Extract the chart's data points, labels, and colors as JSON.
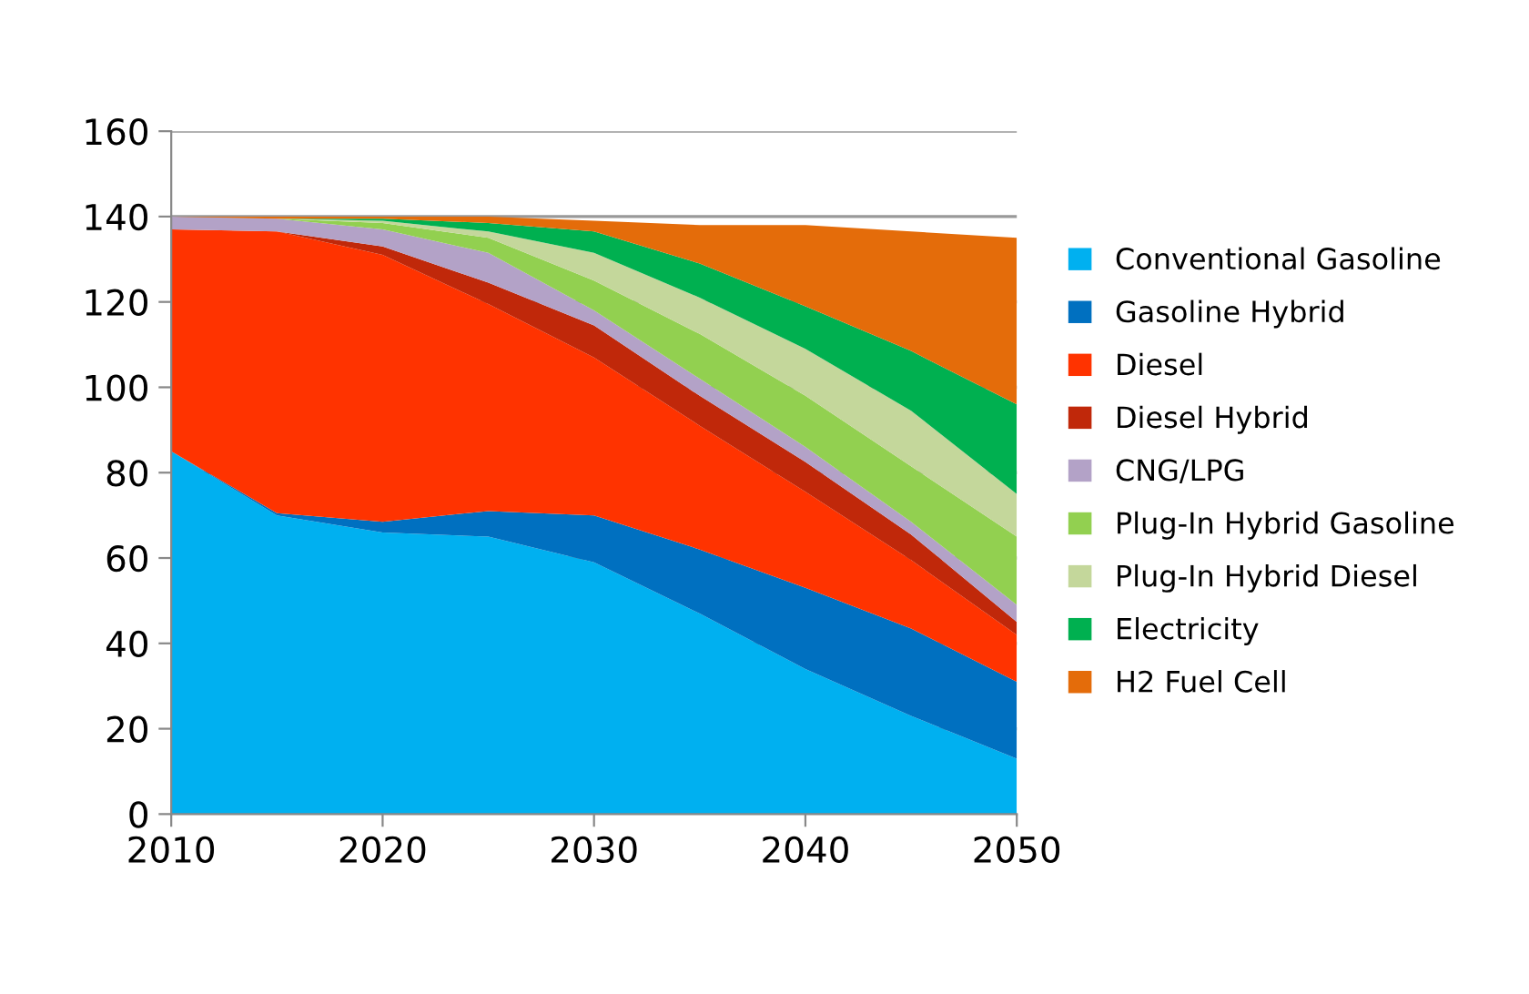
{
  "chart_data": {
    "type": "area",
    "stacked": true,
    "x": [
      2010,
      2015,
      2020,
      2025,
      2030,
      2035,
      2040,
      2045,
      2050
    ],
    "series": [
      {
        "name": "Conventional Gasoline",
        "color": "#00b0f0",
        "values": [
          85,
          70,
          66,
          65,
          59,
          47,
          34,
          23,
          13
        ]
      },
      {
        "name": "Gasoline Hybrid",
        "color": "#0070c0",
        "values": [
          0,
          0.5,
          2.5,
          6,
          11,
          15,
          19,
          20.5,
          18
        ]
      },
      {
        "name": "Diesel",
        "color": "#ff3300",
        "values": [
          52,
          66,
          62.5,
          48.5,
          37,
          29,
          22.5,
          16,
          11
        ]
      },
      {
        "name": "Diesel Hybrid",
        "color": "#c0280a",
        "values": [
          0,
          0,
          2,
          5,
          7.5,
          7,
          7,
          6,
          3
        ]
      },
      {
        "name": "CNG/LPG",
        "color": "#b3a2c7",
        "values": [
          3,
          3,
          4,
          7,
          3.5,
          4,
          3.5,
          3,
          4
        ]
      },
      {
        "name": "Plug-In Hybrid Gasoline",
        "color": "#92d050",
        "values": [
          0,
          0,
          1.5,
          3.5,
          7,
          10.5,
          12,
          13,
          16
        ]
      },
      {
        "name": "Plug-In Hybrid Diesel",
        "color": "#c4d79b",
        "values": [
          0,
          0,
          0.5,
          1.5,
          6.5,
          8.5,
          11,
          13,
          10
        ]
      },
      {
        "name": "Electricity",
        "color": "#00b050",
        "values": [
          0,
          0,
          0.5,
          2,
          5,
          8,
          10,
          14,
          21
        ]
      },
      {
        "name": "H2 Fuel Cell",
        "color": "#e46c0a",
        "values": [
          0,
          0.5,
          0.5,
          1.5,
          2.5,
          9,
          19,
          28,
          39
        ]
      }
    ],
    "xlim": [
      2010,
      2050
    ],
    "xticks": [
      2010,
      2020,
      2030,
      2040,
      2050
    ],
    "ylim": [
      0,
      160
    ],
    "yticks": [
      0,
      20,
      40,
      60,
      80,
      100,
      120,
      140,
      160
    ],
    "grid": "y",
    "legend": "right"
  }
}
